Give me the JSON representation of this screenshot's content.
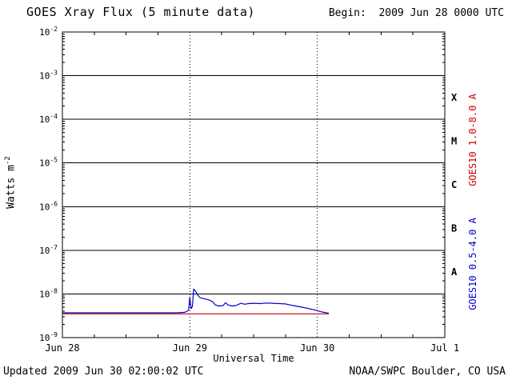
{
  "header": {
    "title": "GOES Xray Flux (5 minute data)",
    "begin_label": "Begin:  2009 Jun 28 0000 UTC"
  },
  "footer": {
    "updated": "Updated 2009 Jun 30 02:00:02 UTC",
    "source": "NOAA/SWPC Boulder, CO USA"
  },
  "chart_data": {
    "type": "line",
    "title": "GOES Xray Flux (5 minute data)",
    "xlabel": "Universal Time",
    "ylabel_base": "Watts m",
    "ylabel_exp": "-2",
    "x_range_days": [
      0,
      3
    ],
    "x_ticks": [
      {
        "label": "Jun 28",
        "day": 0
      },
      {
        "label": "Jun 29",
        "day": 1
      },
      {
        "label": "Jun 30",
        "day": 2
      },
      {
        "label": "Jul 1",
        "day": 3
      }
    ],
    "x_minor_step_days": 0.25,
    "day_gridlines": [
      1,
      2
    ],
    "y_tick_exponents": [
      -2,
      -3,
      -4,
      -5,
      -6,
      -7,
      -8,
      -9
    ],
    "ylim": [
      1e-09,
      0.01
    ],
    "grid": true,
    "flare_classes": [
      {
        "label": "X",
        "exp_mid": -3.5
      },
      {
        "label": "M",
        "exp_mid": -4.5
      },
      {
        "label": "C",
        "exp_mid": -5.5
      },
      {
        "label": "B",
        "exp_mid": -6.5
      },
      {
        "label": "A",
        "exp_mid": -7.5
      }
    ],
    "series": [
      {
        "name": "GOES10 1.0-8.0 A",
        "color": "#cc0000",
        "points": [
          [
            0.0,
            3.5e-09
          ],
          [
            0.5,
            3.5e-09
          ],
          [
            1.0,
            3.5e-09
          ],
          [
            1.5,
            3.5e-09
          ],
          [
            2.0,
            3.5e-09
          ],
          [
            2.09,
            3.5e-09
          ]
        ]
      },
      {
        "name": "GOES10 0.5-4.0 A",
        "color": "#0000cc",
        "points": [
          [
            0.0,
            3.7e-09
          ],
          [
            0.5,
            3.7e-09
          ],
          [
            0.9,
            3.7e-09
          ],
          [
            0.96,
            3.8e-09
          ],
          [
            0.99,
            4.2e-09
          ],
          [
            1.0,
            8.5e-09
          ],
          [
            1.005,
            6e-09
          ],
          [
            1.01,
            4.6e-09
          ],
          [
            1.02,
            5.2e-09
          ],
          [
            1.03,
            1.3e-08
          ],
          [
            1.045,
            1.15e-08
          ],
          [
            1.06,
            9.5e-09
          ],
          [
            1.08,
            8.2e-09
          ],
          [
            1.11,
            7.8e-09
          ],
          [
            1.15,
            7.3e-09
          ],
          [
            1.18,
            6.6e-09
          ],
          [
            1.2,
            5.6e-09
          ],
          [
            1.23,
            5.3e-09
          ],
          [
            1.26,
            5.4e-09
          ],
          [
            1.28,
            6.3e-09
          ],
          [
            1.3,
            5.6e-09
          ],
          [
            1.33,
            5.3e-09
          ],
          [
            1.36,
            5.4e-09
          ],
          [
            1.4,
            6.1e-09
          ],
          [
            1.43,
            5.8e-09
          ],
          [
            1.46,
            6e-09
          ],
          [
            1.5,
            6.1e-09
          ],
          [
            1.55,
            6e-09
          ],
          [
            1.6,
            6.2e-09
          ],
          [
            1.65,
            6.1e-09
          ],
          [
            1.7,
            6e-09
          ],
          [
            1.75,
            5.9e-09
          ],
          [
            1.8,
            5.5e-09
          ],
          [
            1.86,
            5.1e-09
          ],
          [
            1.92,
            4.7e-09
          ],
          [
            1.98,
            4.3e-09
          ],
          [
            2.03,
            3.9e-09
          ],
          [
            2.07,
            3.7e-09
          ],
          [
            2.09,
            3.6e-09
          ]
        ]
      }
    ]
  }
}
